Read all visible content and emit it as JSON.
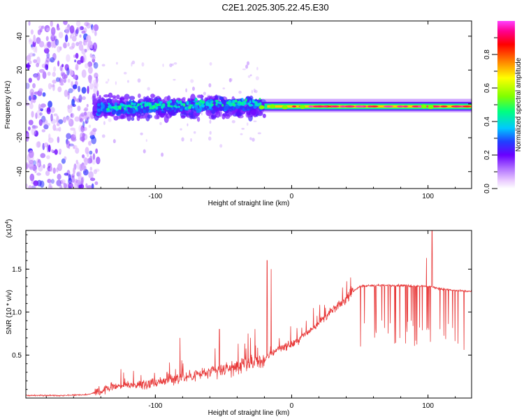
{
  "title": "C2E1.2025.305.22.45.E30",
  "colors": {
    "snr_line": "#e83a3a",
    "frame": "#000000",
    "colorbar_stops": [
      "#ffffff",
      "#e8c8ff",
      "#b070ff",
      "#6a00ff",
      "#2040ff",
      "#00c8ff",
      "#00ff80",
      "#80ff00",
      "#ffff00",
      "#ff8000",
      "#ff0000",
      "#ff0090",
      "#ff40ff"
    ]
  },
  "chart_data": [
    {
      "type": "heatmap",
      "name": "spectrogram",
      "title": "C2E1.2025.305.22.45.E30",
      "xlabel": "Height of straight line (km)",
      "ylabel": "Frequency (Hz)",
      "xlim": [
        -195,
        132
      ],
      "ylim": [
        -50,
        49
      ],
      "xticks": [
        -100,
        0,
        100
      ],
      "xtick_labels": [
        "-100",
        "0",
        "100"
      ],
      "yticks": [
        -40,
        -20,
        0,
        20,
        40
      ],
      "ytick_labels": [
        "-40",
        "-20",
        "0",
        "20",
        "40"
      ],
      "description_segments": [
        {
          "x_range": [
            -195,
            -142
          ],
          "freq_range": [
            -50,
            49
          ],
          "level": 0.12,
          "character": "diffuse noise"
        },
        {
          "x_range": [
            -142,
            -22
          ],
          "freq_range": [
            -10,
            6
          ],
          "level": 0.3,
          "character": "turbulent band"
        },
        {
          "x_range": [
            -22,
            132
          ],
          "freq_range": [
            -4,
            1
          ],
          "level": 0.95,
          "character": "narrow carrier line near -1.5 Hz"
        }
      ],
      "colorbar": {
        "label": "Normalized spectral amplitude",
        "range": [
          0,
          1
        ],
        "ticks": [
          0.0,
          0.2,
          0.4,
          0.6,
          0.8
        ],
        "tick_labels": [
          "0.0",
          "0.2",
          "0.4",
          "0.6",
          "0.8"
        ]
      }
    },
    {
      "type": "line",
      "name": "snr",
      "xlabel": "Height of straight line (km)",
      "ylabel": "SNR (10 * v/v)",
      "scale_note": "(x10",
      "scale_exp": "4",
      "scale_close": ")",
      "xlim": [
        -195,
        132
      ],
      "ylim": [
        0,
        1.95
      ],
      "xticks": [
        -100,
        0,
        100
      ],
      "xtick_labels": [
        "-100",
        "0",
        "100"
      ],
      "yticks": [
        0.5,
        1.0,
        1.5
      ],
      "ytick_labels": [
        "0.5",
        "1.0",
        "1.5"
      ],
      "series": [
        {
          "name": "SNR",
          "x": [
            -195,
            -170,
            -150,
            -140,
            -130,
            -120,
            -100,
            -80,
            -60,
            -40,
            -30,
            -20,
            -10,
            0,
            10,
            20,
            30,
            40,
            45,
            50,
            60,
            80,
            100,
            110,
            120,
            132
          ],
          "y": [
            0.03,
            0.03,
            0.04,
            0.08,
            0.14,
            0.15,
            0.18,
            0.24,
            0.3,
            0.36,
            0.4,
            0.44,
            0.58,
            0.62,
            0.74,
            0.88,
            1.02,
            1.15,
            1.24,
            1.3,
            1.31,
            1.31,
            1.3,
            1.27,
            1.25,
            1.24
          ],
          "spikes": [
            {
              "x": -82,
              "y": 0.7
            },
            {
              "x": -53,
              "y": 0.8
            },
            {
              "x": -32,
              "y": 0.75
            },
            {
              "x": -18,
              "y": 1.6
            },
            {
              "x": -15,
              "y": 1.5
            },
            {
              "x": 99,
              "y": 1.63
            },
            {
              "x": 103,
              "y": 1.95
            }
          ],
          "dips": [
            {
              "x_range": [
                50,
                55
              ],
              "y": 0.55
            },
            {
              "x_range": [
                60,
                102
              ],
              "y": 0.6
            },
            {
              "x_range": [
                105,
                128
              ],
              "y": 0.55
            }
          ]
        }
      ]
    }
  ]
}
